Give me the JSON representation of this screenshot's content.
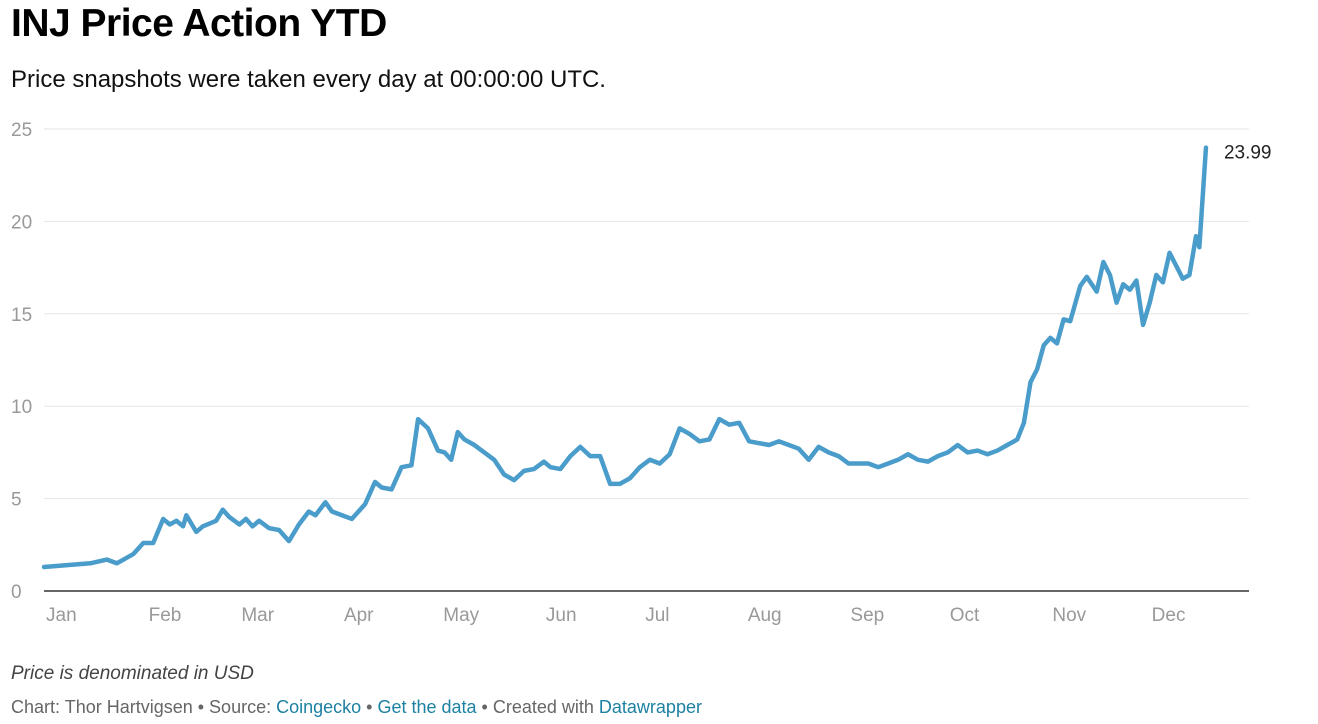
{
  "header": {
    "title": "INJ Price Action YTD",
    "subtitle": "Price snapshots were taken every day at 00:00:00 UTC."
  },
  "notes": {
    "denomination": "Price is denominated in USD"
  },
  "footer": {
    "chart_label": "Chart: Thor Hartvigsen",
    "sep1": " • Source: ",
    "source_link": "Coingecko",
    "sep2": " • ",
    "data_link": "Get the data",
    "sep3": " • Created with ",
    "tool_link": "Datawrapper"
  },
  "colors": {
    "line": "#4a9ccb",
    "grid": "#e6e6e6",
    "axis": "#333333",
    "tick_text": "#999999",
    "link": "#1d81a2"
  },
  "chart_data": {
    "type": "line",
    "title": "INJ Price Action YTD",
    "subtitle": "Price snapshots were taken every day at 00:00:00 UTC.",
    "xlabel": "",
    "ylabel": "",
    "x_ticks": [
      "Jan",
      "Feb",
      "Mar",
      "Apr",
      "May",
      "Jun",
      "Jul",
      "Aug",
      "Sep",
      "Oct",
      "Nov",
      "Dec"
    ],
    "y_ticks": [
      0,
      5,
      10,
      15,
      20,
      25
    ],
    "ylim": [
      0,
      25
    ],
    "xlim": [
      "2023-01-01",
      "2023-12-31"
    ],
    "grid": true,
    "end_label": "23.99",
    "series": [
      {
        "values": [
          [
            "2023-01-01",
            1.3
          ],
          [
            "2023-01-08",
            1.4
          ],
          [
            "2023-01-15",
            1.5
          ],
          [
            "2023-01-20",
            1.7
          ],
          [
            "2023-01-23",
            1.5
          ],
          [
            "2023-01-28",
            2.0
          ],
          [
            "2023-01-31",
            2.6
          ],
          [
            "2023-02-03",
            2.6
          ],
          [
            "2023-02-06",
            3.9
          ],
          [
            "2023-02-08",
            3.6
          ],
          [
            "2023-02-10",
            3.8
          ],
          [
            "2023-02-12",
            3.5
          ],
          [
            "2023-02-13",
            4.1
          ],
          [
            "2023-02-16",
            3.2
          ],
          [
            "2023-02-18",
            3.5
          ],
          [
            "2023-02-22",
            3.8
          ],
          [
            "2023-02-24",
            4.4
          ],
          [
            "2023-02-26",
            4.0
          ],
          [
            "2023-03-01",
            3.6
          ],
          [
            "2023-03-03",
            3.9
          ],
          [
            "2023-03-05",
            3.5
          ],
          [
            "2023-03-07",
            3.8
          ],
          [
            "2023-03-10",
            3.4
          ],
          [
            "2023-03-13",
            3.3
          ],
          [
            "2023-03-16",
            2.7
          ],
          [
            "2023-03-19",
            3.6
          ],
          [
            "2023-03-22",
            4.3
          ],
          [
            "2023-03-24",
            4.1
          ],
          [
            "2023-03-27",
            4.8
          ],
          [
            "2023-03-29",
            4.3
          ],
          [
            "2023-04-01",
            4.1
          ],
          [
            "2023-04-04",
            3.9
          ],
          [
            "2023-04-08",
            4.7
          ],
          [
            "2023-04-11",
            5.9
          ],
          [
            "2023-04-13",
            5.6
          ],
          [
            "2023-04-16",
            5.5
          ],
          [
            "2023-04-19",
            6.7
          ],
          [
            "2023-04-22",
            6.8
          ],
          [
            "2023-04-24",
            9.3
          ],
          [
            "2023-04-27",
            8.8
          ],
          [
            "2023-04-30",
            7.6
          ],
          [
            "2023-05-02",
            7.5
          ],
          [
            "2023-05-04",
            7.1
          ],
          [
            "2023-05-06",
            8.6
          ],
          [
            "2023-05-08",
            8.2
          ],
          [
            "2023-05-11",
            7.9
          ],
          [
            "2023-05-14",
            7.5
          ],
          [
            "2023-05-17",
            7.1
          ],
          [
            "2023-05-20",
            6.3
          ],
          [
            "2023-05-23",
            6.0
          ],
          [
            "2023-05-26",
            6.5
          ],
          [
            "2023-05-29",
            6.6
          ],
          [
            "2023-06-01",
            7.0
          ],
          [
            "2023-06-03",
            6.7
          ],
          [
            "2023-06-06",
            6.6
          ],
          [
            "2023-06-09",
            7.3
          ],
          [
            "2023-06-12",
            7.8
          ],
          [
            "2023-06-15",
            7.3
          ],
          [
            "2023-06-18",
            7.3
          ],
          [
            "2023-06-21",
            5.8
          ],
          [
            "2023-06-24",
            5.8
          ],
          [
            "2023-06-27",
            6.1
          ],
          [
            "2023-06-30",
            6.7
          ],
          [
            "2023-07-03",
            7.1
          ],
          [
            "2023-07-06",
            6.9
          ],
          [
            "2023-07-09",
            7.4
          ],
          [
            "2023-07-12",
            8.8
          ],
          [
            "2023-07-15",
            8.5
          ],
          [
            "2023-07-18",
            8.1
          ],
          [
            "2023-07-21",
            8.2
          ],
          [
            "2023-07-24",
            9.3
          ],
          [
            "2023-07-27",
            9.0
          ],
          [
            "2023-07-30",
            9.1
          ],
          [
            "2023-08-02",
            8.1
          ],
          [
            "2023-08-05",
            8.0
          ],
          [
            "2023-08-08",
            7.9
          ],
          [
            "2023-08-11",
            8.1
          ],
          [
            "2023-08-14",
            7.9
          ],
          [
            "2023-08-17",
            7.7
          ],
          [
            "2023-08-20",
            7.1
          ],
          [
            "2023-08-23",
            7.8
          ],
          [
            "2023-08-26",
            7.5
          ],
          [
            "2023-08-29",
            7.3
          ],
          [
            "2023-09-01",
            6.9
          ],
          [
            "2023-09-04",
            6.9
          ],
          [
            "2023-09-07",
            6.9
          ],
          [
            "2023-09-10",
            6.7
          ],
          [
            "2023-09-13",
            6.9
          ],
          [
            "2023-09-16",
            7.1
          ],
          [
            "2023-09-19",
            7.4
          ],
          [
            "2023-09-22",
            7.1
          ],
          [
            "2023-09-25",
            7.0
          ],
          [
            "2023-09-28",
            7.3
          ],
          [
            "2023-10-01",
            7.5
          ],
          [
            "2023-10-04",
            7.9
          ],
          [
            "2023-10-07",
            7.5
          ],
          [
            "2023-10-10",
            7.6
          ],
          [
            "2023-10-13",
            7.4
          ],
          [
            "2023-10-16",
            7.6
          ],
          [
            "2023-10-19",
            7.9
          ],
          [
            "2023-10-22",
            8.2
          ],
          [
            "2023-10-24",
            9.1
          ],
          [
            "2023-10-26",
            11.3
          ],
          [
            "2023-10-28",
            12.0
          ],
          [
            "2023-10-30",
            13.3
          ],
          [
            "2023-11-01",
            13.7
          ],
          [
            "2023-11-03",
            13.4
          ],
          [
            "2023-11-05",
            14.7
          ],
          [
            "2023-11-07",
            14.6
          ],
          [
            "2023-11-10",
            16.5
          ],
          [
            "2023-11-12",
            17.0
          ],
          [
            "2023-11-15",
            16.2
          ],
          [
            "2023-11-17",
            17.8
          ],
          [
            "2023-11-19",
            17.1
          ],
          [
            "2023-11-21",
            15.6
          ],
          [
            "2023-11-23",
            16.6
          ],
          [
            "2023-11-25",
            16.3
          ],
          [
            "2023-11-27",
            16.8
          ],
          [
            "2023-11-29",
            14.4
          ],
          [
            "2023-12-01",
            15.6
          ],
          [
            "2023-12-03",
            17.1
          ],
          [
            "2023-12-05",
            16.7
          ],
          [
            "2023-12-07",
            18.3
          ],
          [
            "2023-12-09",
            17.6
          ],
          [
            "2023-12-11",
            16.9
          ],
          [
            "2023-12-13",
            17.1
          ],
          [
            "2023-12-15",
            19.2
          ],
          [
            "2023-12-16",
            18.6
          ],
          [
            "2023-12-18",
            23.99
          ]
        ]
      }
    ]
  }
}
